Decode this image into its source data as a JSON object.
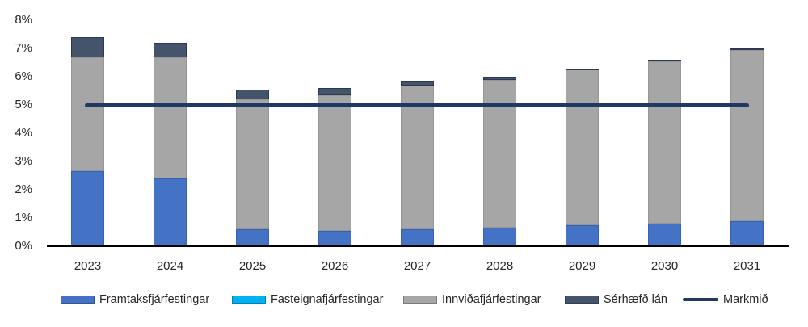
{
  "chart_data": {
    "type": "bar",
    "stacked": true,
    "title": "",
    "xlabel": "",
    "ylabel": "",
    "categories": [
      "2023",
      "2024",
      "2025",
      "2026",
      "2027",
      "2028",
      "2029",
      "2030",
      "2031"
    ],
    "series": [
      {
        "name": "Framtaksfjárfestingar",
        "color": "#4472C4",
        "border": "#3461b4",
        "values": [
          2.65,
          2.4,
          0.6,
          0.55,
          0.6,
          0.65,
          0.75,
          0.8,
          0.9
        ]
      },
      {
        "name": "Fasteignafjárfestingar",
        "color": "#00B0F0",
        "border": "#0090c8",
        "values": [
          0,
          0,
          0,
          0,
          0,
          0,
          0,
          0,
          0
        ]
      },
      {
        "name": "Innviðafjárfestingar",
        "color": "#A6A6A6",
        "border": "#969696",
        "values": [
          4.05,
          4.3,
          4.6,
          4.8,
          5.1,
          5.25,
          5.5,
          5.75,
          6.05
        ]
      },
      {
        "name": "Sérhæfð lán",
        "color": "#44546A",
        "border": "#2b3a52",
        "values": [
          0.7,
          0.5,
          0.35,
          0.25,
          0.15,
          0.1,
          0.05,
          0.05,
          0.05
        ]
      }
    ],
    "target_line": {
      "name": "Markmið",
      "color": "#1F3864",
      "value": 5
    },
    "ylim": [
      0,
      8
    ],
    "ytick_step": 1,
    "yticks": [
      "0%",
      "1%",
      "2%",
      "3%",
      "4%",
      "5%",
      "6%",
      "7%",
      "8%"
    ],
    "grid": false,
    "legend_position": "bottom",
    "legend": [
      {
        "label": "Framtaksfjárfestingar",
        "swatch": "rect",
        "color": "#4472C4"
      },
      {
        "label": "Fasteignafjárfestingar",
        "swatch": "rect",
        "color": "#00B0F0"
      },
      {
        "label": "Innviðafjárfestingar",
        "swatch": "rect",
        "color": "#A6A6A6"
      },
      {
        "label": "Sérhæfð lán",
        "swatch": "rect",
        "color": "#44546A"
      },
      {
        "label": "Markmið",
        "swatch": "line",
        "color": "#1F3864"
      }
    ],
    "axis_color": "#000000",
    "text_color": "#262626"
  }
}
